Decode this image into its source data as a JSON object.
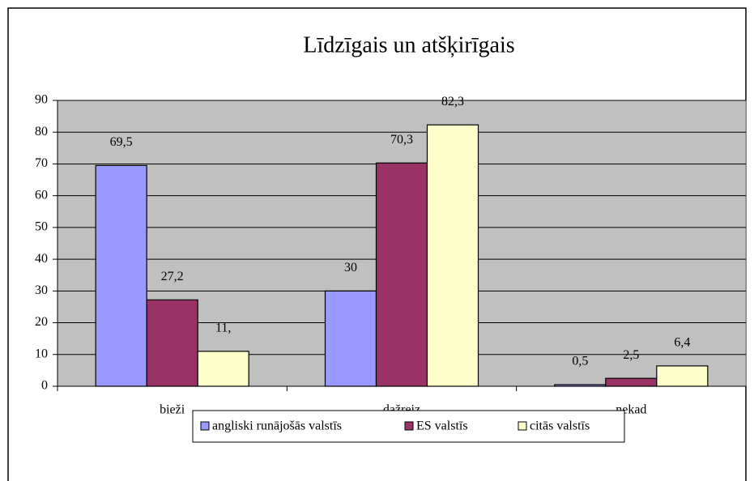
{
  "chart_data": {
    "type": "bar",
    "title": "Līdzīgais un atšķirīgais",
    "categories": [
      "bieži",
      "dažreiz",
      "nekad"
    ],
    "series": [
      {
        "name": "angliski runājošās valstīs",
        "color": "#9999ff",
        "values": [
          69.5,
          30,
          0.5
        ],
        "value_labels": [
          "69,5",
          "30",
          "0,5"
        ]
      },
      {
        "name": "ES valstīs",
        "color": "#993366",
        "values": [
          27.2,
          70.3,
          2.5
        ],
        "value_labels": [
          "27,2",
          "70,3",
          "2,5"
        ]
      },
      {
        "name": "citās valstīs",
        "color": "#ffffcc",
        "values": [
          11,
          82.3,
          6.4
        ],
        "value_labels": [
          "11,",
          "82,3",
          "6,4"
        ]
      }
    ],
    "ylim": [
      0,
      90
    ],
    "yticks": [
      0,
      10,
      20,
      30,
      40,
      50,
      60,
      70,
      80,
      90
    ],
    "grid": true,
    "legend": "bottom"
  }
}
